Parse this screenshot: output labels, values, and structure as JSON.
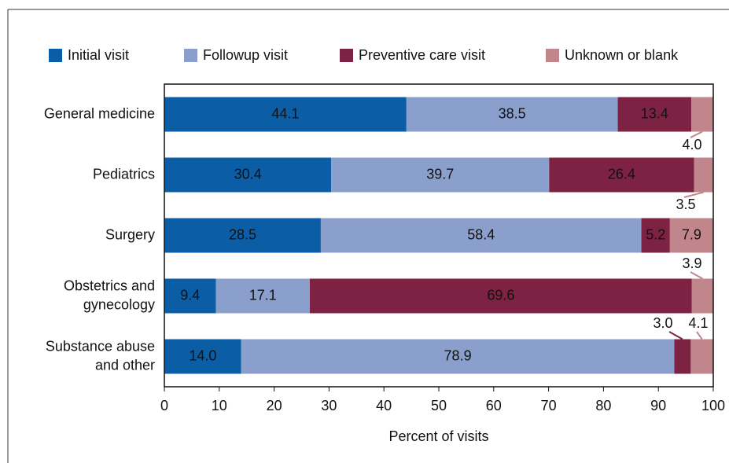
{
  "chart_data": {
    "type": "stacked-bar-horizontal",
    "x_label": "Percent of visits",
    "categories": [
      [
        "General medicine"
      ],
      [
        "Pediatrics"
      ],
      [
        "Surgery"
      ],
      [
        "Obstetrics and",
        "gynecology"
      ],
      [
        "Substance abuse",
        "and other"
      ]
    ],
    "series": [
      {
        "name": "Initial visit",
        "color": "#0b5ea6",
        "values": [
          44.1,
          30.4,
          28.5,
          9.4,
          14.0
        ],
        "value_labels": [
          "44.1",
          "30.4",
          "28.5",
          "9.4",
          "14.0"
        ]
      },
      {
        "name": "Followup visit",
        "color": "#8b9fcc",
        "values": [
          38.5,
          39.7,
          58.4,
          17.1,
          78.9
        ],
        "value_labels": [
          "38.5",
          "39.7",
          "58.4",
          "17.1",
          "78.9"
        ]
      },
      {
        "name": "Preventive care visit",
        "color": "#7d2242",
        "values": [
          13.4,
          26.4,
          5.2,
          69.6,
          3.0
        ],
        "value_labels": [
          "13.4",
          "26.4",
          "5.2",
          "69.6",
          "3.0"
        ]
      },
      {
        "name": "Unknown or blank",
        "color": "#c0868c",
        "values": [
          4.0,
          3.5,
          7.9,
          3.9,
          4.1
        ],
        "value_labels": [
          "4.0",
          "3.5",
          "7.9",
          "3.9",
          "4.1"
        ]
      }
    ],
    "xlim": [
      0,
      100
    ],
    "xticks": [
      0,
      10,
      20,
      30,
      40,
      50,
      60,
      70,
      80,
      90,
      100
    ]
  }
}
